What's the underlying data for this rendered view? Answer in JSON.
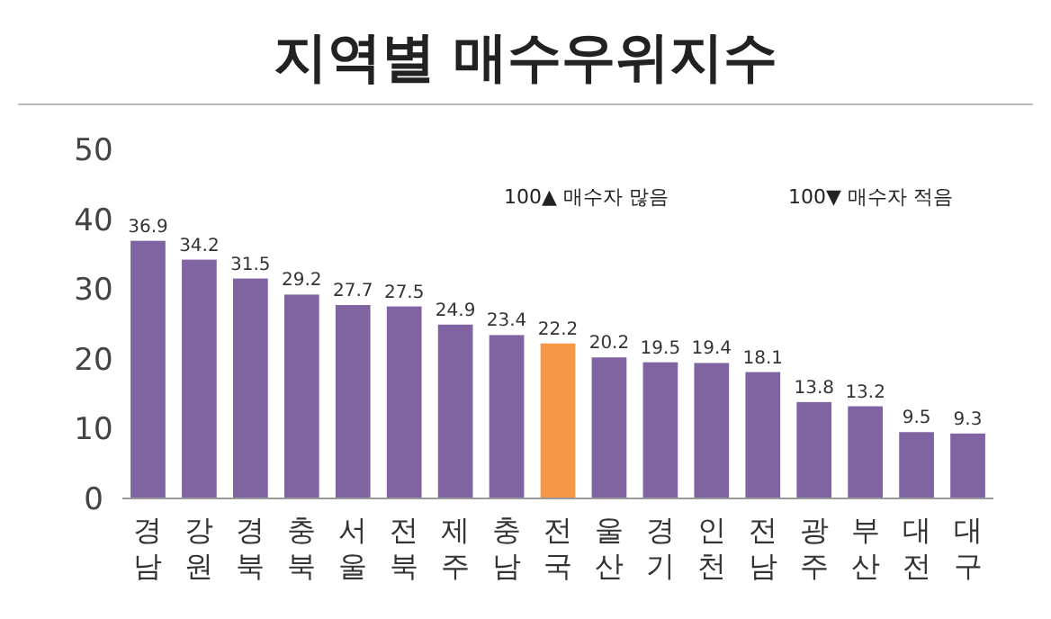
{
  "chart_data": {
    "type": "bar",
    "title": "지역별 매수우위지수",
    "categories": [
      "경남",
      "강원",
      "경북",
      "충북",
      "서울",
      "전북",
      "제주",
      "충남",
      "전국",
      "울산",
      "경기",
      "인천",
      "전남",
      "광주",
      "부산",
      "대전",
      "대구"
    ],
    "values": [
      36.9,
      34.2,
      31.5,
      29.2,
      27.7,
      27.5,
      24.9,
      23.4,
      22.2,
      20.2,
      19.5,
      19.4,
      18.1,
      13.8,
      13.2,
      9.5,
      9.3
    ],
    "colors": [
      "#8064a2",
      "#8064a2",
      "#8064a2",
      "#8064a2",
      "#8064a2",
      "#8064a2",
      "#8064a2",
      "#8064a2",
      "#f79646",
      "#8064a2",
      "#8064a2",
      "#8064a2",
      "#8064a2",
      "#8064a2",
      "#8064a2",
      "#8064a2",
      "#8064a2"
    ],
    "ylim": [
      0,
      50
    ],
    "yticks": [
      0,
      10,
      20,
      30,
      40,
      50
    ],
    "data_labels": true,
    "grid": false,
    "annotations": [
      "100▲  매수자  많음",
      "100▼  매수자  적음"
    ]
  }
}
